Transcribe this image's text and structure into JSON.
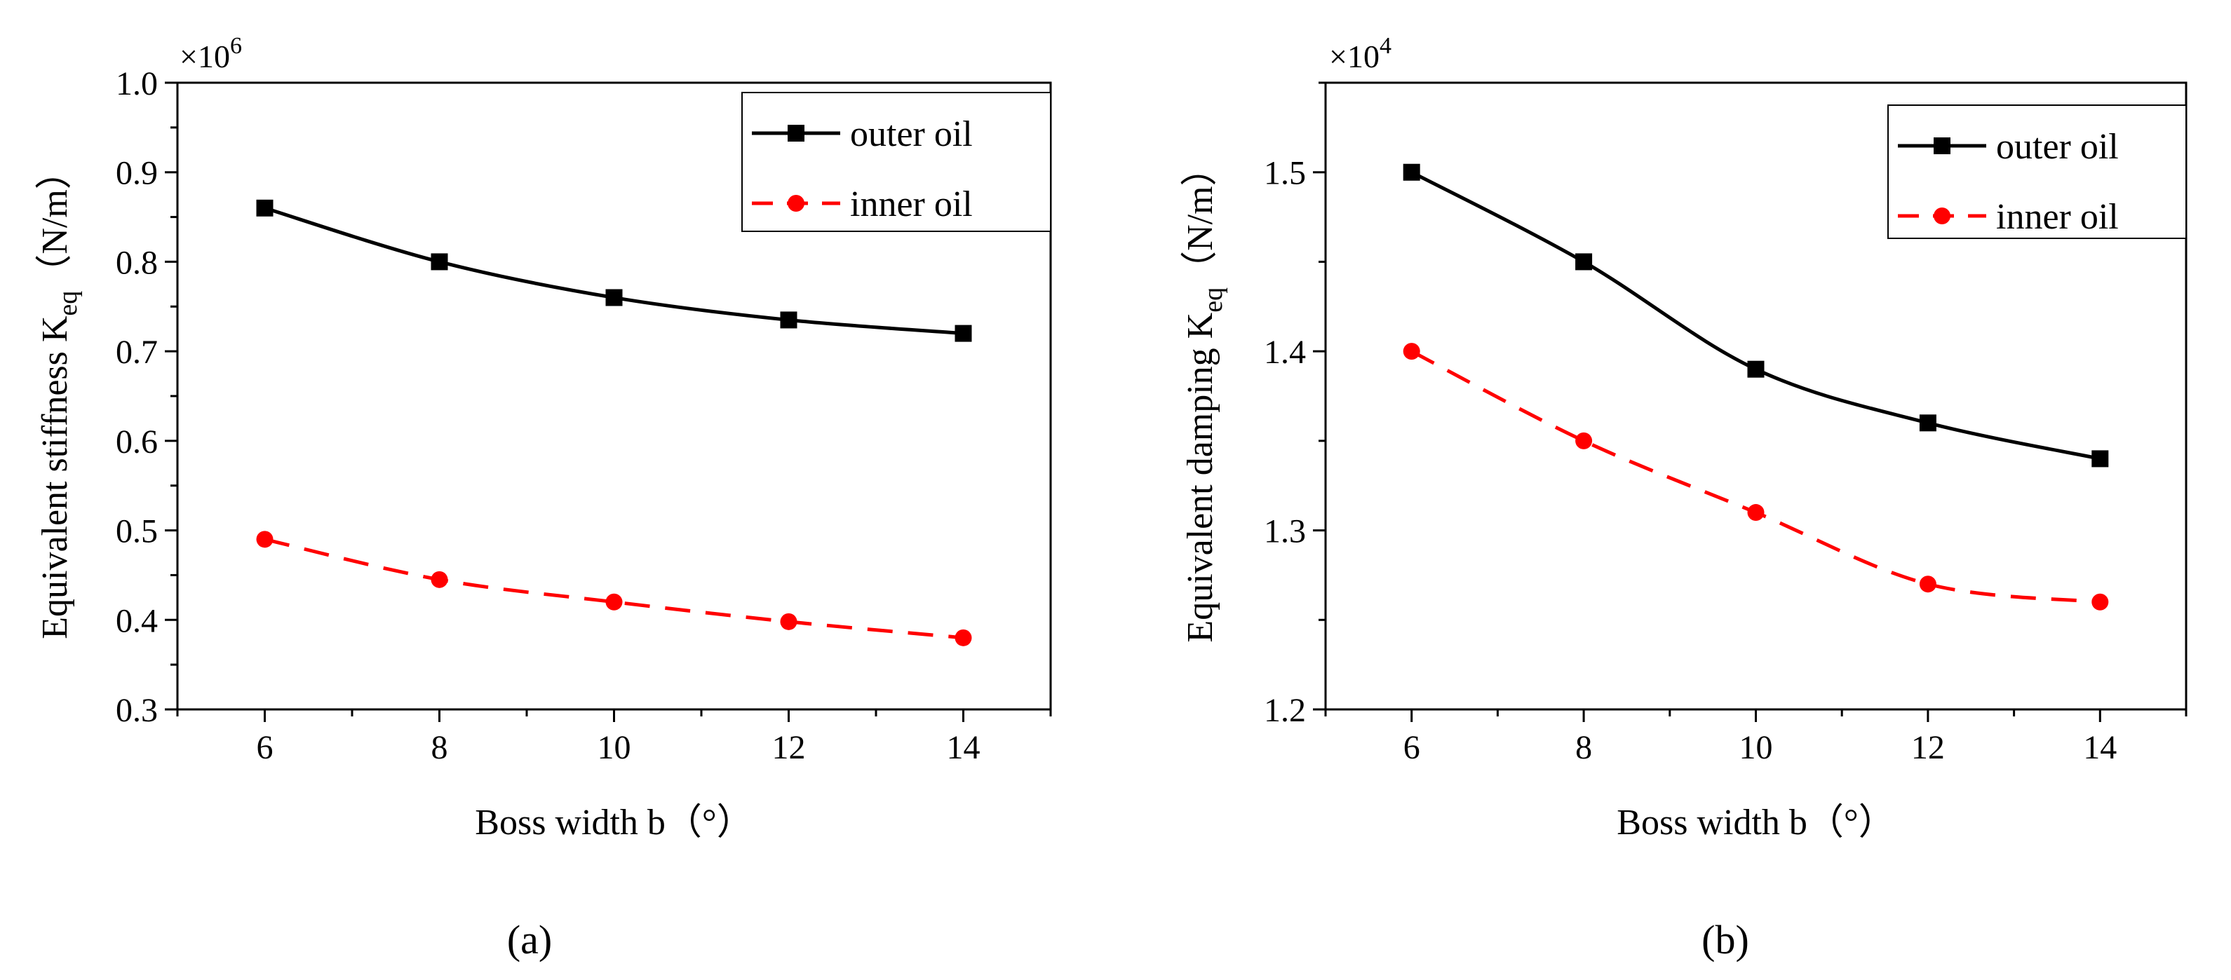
{
  "figure": {
    "panels": [
      "a",
      "b"
    ]
  },
  "chart_data": [
    {
      "type": "line",
      "panel_label": "(a)",
      "title": "",
      "xlabel": "Boss width b（°）",
      "ylabel_main": "Equivalent stiffness K",
      "ylabel_sub": "eq",
      "ylabel_unit": "（N/m）",
      "multiplier_base": "×10",
      "multiplier_exp": "6",
      "x": [
        6,
        8,
        10,
        12,
        14
      ],
      "xlim": [
        5,
        15
      ],
      "ylim": [
        0.3,
        1.0
      ],
      "xticks": [
        6,
        8,
        10,
        12,
        14
      ],
      "xtick_labels": [
        "6",
        "8",
        "10",
        "12",
        "14"
      ],
      "yticks": [
        0.3,
        0.4,
        0.5,
        0.6,
        0.7,
        0.8,
        0.9,
        1.0
      ],
      "ytick_labels": [
        "0.3",
        "0.4",
        "0.5",
        "0.6",
        "0.7",
        "0.8",
        "0.9",
        "1.0"
      ],
      "legend_position": "top-right",
      "series": [
        {
          "name": "outer oil",
          "values": [
            0.86,
            0.8,
            0.76,
            0.735,
            0.72
          ],
          "color": "#000000",
          "marker": "square",
          "dash": "solid"
        },
        {
          "name": "inner oil",
          "values": [
            0.49,
            0.445,
            0.42,
            0.398,
            0.38
          ],
          "color": "#ff0000",
          "marker": "circle",
          "dash": "dashed"
        }
      ]
    },
    {
      "type": "line",
      "panel_label": "(b)",
      "title": "",
      "xlabel": "Boss width b（°）",
      "ylabel_main": "Equivalent damping K",
      "ylabel_sub": "eq",
      "ylabel_unit": "（N/m）",
      "multiplier_base": "×10",
      "multiplier_exp": "4",
      "x": [
        6,
        8,
        10,
        12,
        14
      ],
      "xlim": [
        5,
        15
      ],
      "ylim": [
        1.2,
        1.55
      ],
      "xticks": [
        6,
        8,
        10,
        12,
        14
      ],
      "xtick_labels": [
        "6",
        "8",
        "10",
        "12",
        "14"
      ],
      "yticks": [
        1.2,
        1.3,
        1.4,
        1.5
      ],
      "ytick_labels": [
        "1.2",
        "1.3",
        "1.4",
        "1.5"
      ],
      "legend_position": "top-right",
      "series": [
        {
          "name": "outer oil",
          "values": [
            1.5,
            1.45,
            1.39,
            1.36,
            1.34
          ],
          "color": "#000000",
          "marker": "square",
          "dash": "solid"
        },
        {
          "name": "inner oil",
          "values": [
            1.4,
            1.35,
            1.31,
            1.27,
            1.26
          ],
          "color": "#ff0000",
          "marker": "circle",
          "dash": "dashed"
        }
      ]
    }
  ]
}
